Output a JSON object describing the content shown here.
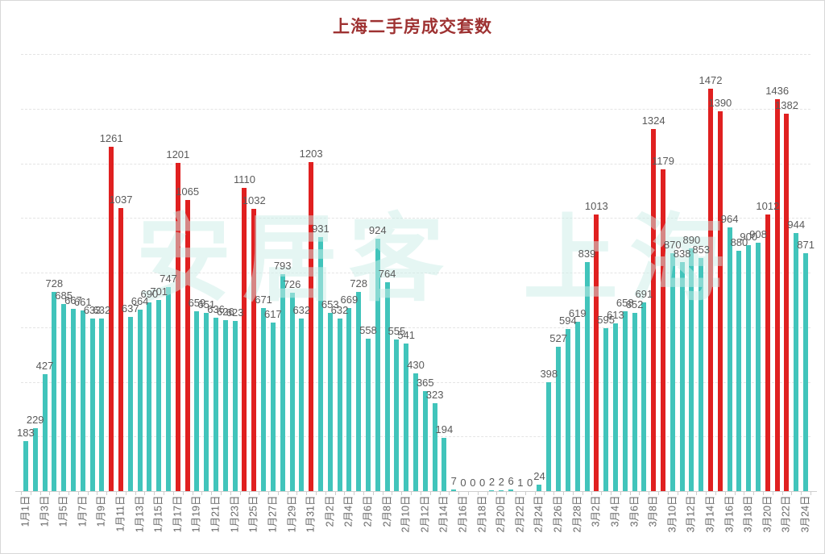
{
  "title": "上海二手房成交套数",
  "chart_data": {
    "type": "bar",
    "title": "上海二手房成交套数",
    "title_color": "#9e3232",
    "categories": [
      "1月1日",
      "1月2日",
      "1月3日",
      "1月4日",
      "1月5日",
      "1月6日",
      "1月7日",
      "1月8日",
      "1月9日",
      "1月10日",
      "1月11日",
      "1月12日",
      "1月13日",
      "1月14日",
      "1月15日",
      "1月16日",
      "1月17日",
      "1月18日",
      "1月19日",
      "1月20日",
      "1月21日",
      "1月22日",
      "1月23日",
      "1月24日",
      "1月25日",
      "1月26日",
      "1月27日",
      "1月28日",
      "1月29日",
      "1月30日",
      "1月31日",
      "2月1日",
      "2月2日",
      "2月3日",
      "2月4日",
      "2月5日",
      "2月6日",
      "2月7日",
      "2月8日",
      "2月9日",
      "2月10日",
      "2月11日",
      "2月12日",
      "2月13日",
      "2月14日",
      "2月15日",
      "2月16日",
      "2月17日",
      "2月18日",
      "2月19日",
      "2月20日",
      "2月21日",
      "2月22日",
      "2月23日",
      "2月24日",
      "2月25日",
      "2月26日",
      "2月27日",
      "2月28日",
      "3月1日",
      "3月2日",
      "3月3日",
      "3月4日",
      "3月5日",
      "3月6日",
      "3月7日",
      "3月8日",
      "3月9日",
      "3月10日",
      "3月11日",
      "3月12日",
      "3月13日",
      "3月14日",
      "3月15日",
      "3月16日",
      "3月17日",
      "3月18日",
      "3月19日",
      "3月20日",
      "3月21日",
      "3月22日",
      "3月23日",
      "3月24日"
    ],
    "values": [
      183,
      229,
      427,
      728,
      685,
      667,
      661,
      633,
      632,
      1261,
      1037,
      637,
      664,
      690,
      701,
      747,
      1201,
      1065,
      659,
      651,
      636,
      626,
      623,
      1110,
      1032,
      671,
      617,
      793,
      726,
      632,
      1203,
      931,
      653,
      632,
      669,
      728,
      558,
      924,
      764,
      555,
      541,
      430,
      365,
      323,
      194,
      7,
      0,
      0,
      0,
      2,
      2,
      6,
      1,
      0,
      24,
      398,
      527,
      594,
      619,
      839,
      1013,
      595,
      613,
      658,
      652,
      691,
      1324,
      1179,
      870,
      838,
      890,
      853,
      1472,
      1390,
      964,
      880,
      900,
      908,
      1012,
      1436,
      1382,
      944,
      871
    ],
    "red_threshold": 1000,
    "bar_color": "#41c4bb",
    "highlight_color": "#e02020",
    "value_label_color": "#5a5a5a",
    "xlabel": "",
    "ylabel": "",
    "ylim": [
      0,
      1600
    ],
    "grid_step": 200,
    "grid_on": true,
    "x_label_every": 2,
    "legend": "none",
    "watermark": [
      "安居客",
      "上海"
    ],
    "watermark_color": "#cdeee9"
  }
}
